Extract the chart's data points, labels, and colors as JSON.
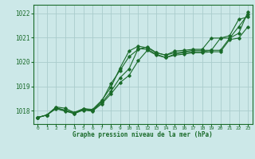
{
  "title": "Graphe pression niveau de la mer (hPa)",
  "background_color": "#cce8e8",
  "grid_color": "#aacccc",
  "line_color": "#1a6b2a",
  "xlim": [
    -0.5,
    23.5
  ],
  "ylim": [
    1017.45,
    1022.35
  ],
  "yticks": [
    1018,
    1019,
    1020,
    1021,
    1022
  ],
  "xticks": [
    0,
    1,
    2,
    3,
    4,
    5,
    6,
    7,
    8,
    9,
    10,
    11,
    12,
    13,
    14,
    15,
    16,
    17,
    18,
    19,
    20,
    21,
    22,
    23
  ],
  "series": {
    "line1": [
      1017.72,
      1017.82,
      1018.15,
      1018.1,
      1017.92,
      1018.08,
      1018.05,
      1018.42,
      1018.95,
      1019.75,
      1020.45,
      1020.65,
      1020.58,
      1020.38,
      1020.28,
      1020.45,
      1020.48,
      1020.52,
      1020.52,
      1020.98,
      1020.98,
      1021.08,
      1021.75,
      1021.85
    ],
    "line2": [
      1017.72,
      1017.82,
      1018.1,
      1018.0,
      1017.88,
      1018.05,
      1018.0,
      1018.32,
      1018.78,
      1019.35,
      1019.72,
      1020.55,
      1020.52,
      1020.32,
      1020.18,
      1020.32,
      1020.38,
      1020.42,
      1020.42,
      1020.48,
      1020.48,
      1020.98,
      1021.45,
      1021.95
    ],
    "line3": [
      1017.72,
      1017.82,
      1018.12,
      1018.02,
      1017.92,
      1018.08,
      1018.02,
      1018.38,
      1019.1,
      1019.65,
      1020.22,
      1020.52,
      1020.62,
      1020.38,
      1020.28,
      1020.38,
      1020.42,
      1020.48,
      1020.48,
      1020.48,
      1020.98,
      1020.98,
      1021.18,
      1022.05
    ],
    "line4": [
      1017.72,
      1017.82,
      1018.08,
      1017.98,
      1017.88,
      1018.02,
      1017.98,
      1018.28,
      1018.68,
      1019.15,
      1019.45,
      1020.05,
      1020.48,
      1020.28,
      1020.18,
      1020.28,
      1020.32,
      1020.38,
      1020.38,
      1020.42,
      1020.42,
      1020.92,
      1020.98,
      1021.45
    ]
  }
}
